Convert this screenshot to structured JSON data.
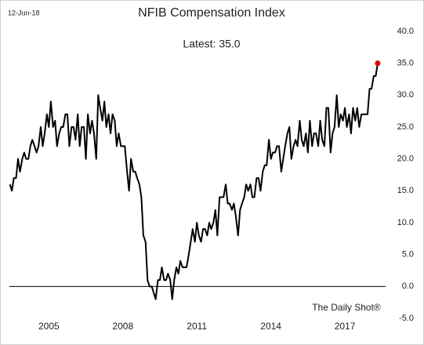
{
  "chart_data": {
    "type": "line",
    "title": "NFIB Compensation Index",
    "date": "12-Jun-18",
    "annotation": "Latest:  35.0",
    "source": "The Daily Shot®",
    "xlim": [
      2003.4,
      2018.65
    ],
    "xticks": [
      2005,
      2008,
      2011,
      2014,
      2017
    ],
    "ylim": [
      -5,
      40
    ],
    "yticks": [
      {
        "value": -5,
        "label": "-5.0"
      },
      {
        "value": 0,
        "label": "0.0"
      },
      {
        "value": 5,
        "label": "5.0"
      },
      {
        "value": 10,
        "label": "10.0"
      },
      {
        "value": 15,
        "label": "15.0"
      },
      {
        "value": 20,
        "label": "20.0"
      },
      {
        "value": 25,
        "label": "25.0"
      },
      {
        "value": 30,
        "label": "30.0"
      },
      {
        "value": 35,
        "label": "35.0"
      },
      {
        "value": 40,
        "label": "40.0"
      }
    ],
    "zero_line": true,
    "latest_color": "#e00000",
    "x": [
      2003.42,
      2003.5,
      2003.58,
      2003.67,
      2003.75,
      2003.83,
      2003.92,
      2004,
      2004.08,
      2004.17,
      2004.25,
      2004.33,
      2004.42,
      2004.5,
      2004.58,
      2004.67,
      2004.75,
      2004.83,
      2004.92,
      2005,
      2005.08,
      2005.17,
      2005.25,
      2005.33,
      2005.42,
      2005.5,
      2005.58,
      2005.67,
      2005.75,
      2005.83,
      2005.92,
      2006,
      2006.08,
      2006.17,
      2006.25,
      2006.33,
      2006.42,
      2006.5,
      2006.58,
      2006.67,
      2006.75,
      2006.83,
      2006.92,
      2007,
      2007.08,
      2007.17,
      2007.25,
      2007.33,
      2007.42,
      2007.5,
      2007.58,
      2007.67,
      2007.75,
      2007.83,
      2007.92,
      2008,
      2008.08,
      2008.17,
      2008.25,
      2008.33,
      2008.42,
      2008.5,
      2008.58,
      2008.67,
      2008.75,
      2008.83,
      2008.92,
      2009,
      2009.08,
      2009.17,
      2009.25,
      2009.33,
      2009.42,
      2009.5,
      2009.58,
      2009.67,
      2009.75,
      2009.83,
      2009.92,
      2010,
      2010.08,
      2010.17,
      2010.25,
      2010.33,
      2010.42,
      2010.5,
      2010.58,
      2010.67,
      2010.75,
      2010.83,
      2010.92,
      2011,
      2011.08,
      2011.17,
      2011.25,
      2011.33,
      2011.42,
      2011.5,
      2011.58,
      2011.67,
      2011.75,
      2011.83,
      2011.92,
      2012,
      2012.08,
      2012.17,
      2012.25,
      2012.33,
      2012.42,
      2012.5,
      2012.58,
      2012.67,
      2012.75,
      2012.83,
      2012.92,
      2013,
      2013.08,
      2013.17,
      2013.25,
      2013.33,
      2013.42,
      2013.5,
      2013.58,
      2013.67,
      2013.75,
      2013.83,
      2013.92,
      2014,
      2014.08,
      2014.17,
      2014.25,
      2014.33,
      2014.42,
      2014.5,
      2014.58,
      2014.67,
      2014.75,
      2014.83,
      2014.92,
      2015,
      2015.08,
      2015.17,
      2015.25,
      2015.33,
      2015.42,
      2015.5,
      2015.58,
      2015.67,
      2015.75,
      2015.83,
      2015.92,
      2016,
      2016.08,
      2016.17,
      2016.25,
      2016.33,
      2016.42,
      2016.5,
      2016.58,
      2016.67,
      2016.75,
      2016.83,
      2016.92,
      2017,
      2017.08,
      2017.17,
      2017.25,
      2017.33,
      2017.42,
      2017.5,
      2017.58,
      2017.67,
      2017.75,
      2017.83,
      2017.92,
      2018,
      2018.08,
      2018.17,
      2018.25,
      2018.33
    ],
    "series": [
      {
        "name": "NFIB Compensation Index",
        "color": "#000000",
        "values": [
          16,
          15,
          17,
          17,
          20,
          18,
          20,
          21,
          20,
          20,
          22,
          23,
          22,
          21,
          22,
          25,
          22,
          24,
          27,
          25,
          29,
          25,
          26,
          22,
          24,
          25,
          25,
          27,
          27,
          22,
          25,
          25,
          23,
          27,
          22,
          25,
          25,
          20,
          27,
          24,
          26,
          24,
          20,
          30,
          28,
          26,
          29,
          25,
          27,
          24,
          27,
          26,
          22,
          24,
          22,
          22,
          22,
          18,
          15,
          20,
          18,
          18,
          17,
          16,
          14,
          8,
          7,
          1,
          0,
          0,
          -1,
          -2,
          1,
          1,
          3,
          1,
          1,
          2,
          1,
          -2,
          1,
          3,
          2,
          4,
          3,
          3,
          3,
          5,
          7,
          9,
          7,
          10,
          8,
          7,
          9,
          9,
          8,
          10,
          9,
          10,
          12,
          8,
          14,
          14,
          14,
          16,
          13,
          13,
          12,
          13,
          11,
          8,
          12,
          13,
          14,
          16,
          15,
          16,
          14,
          14,
          17,
          17,
          15,
          18,
          19,
          19,
          23,
          20,
          21,
          21,
          22,
          22,
          18,
          20,
          22,
          24,
          25,
          20,
          22,
          23,
          22,
          26,
          23,
          22,
          24,
          21,
          26,
          22,
          24,
          24,
          22,
          26,
          23,
          22,
          28,
          28,
          21,
          24,
          25,
          30,
          25,
          27,
          26,
          28,
          25,
          27,
          24,
          28,
          26,
          28,
          25,
          27,
          27,
          27,
          27,
          31,
          31,
          33,
          33,
          35
        ]
      }
    ]
  }
}
